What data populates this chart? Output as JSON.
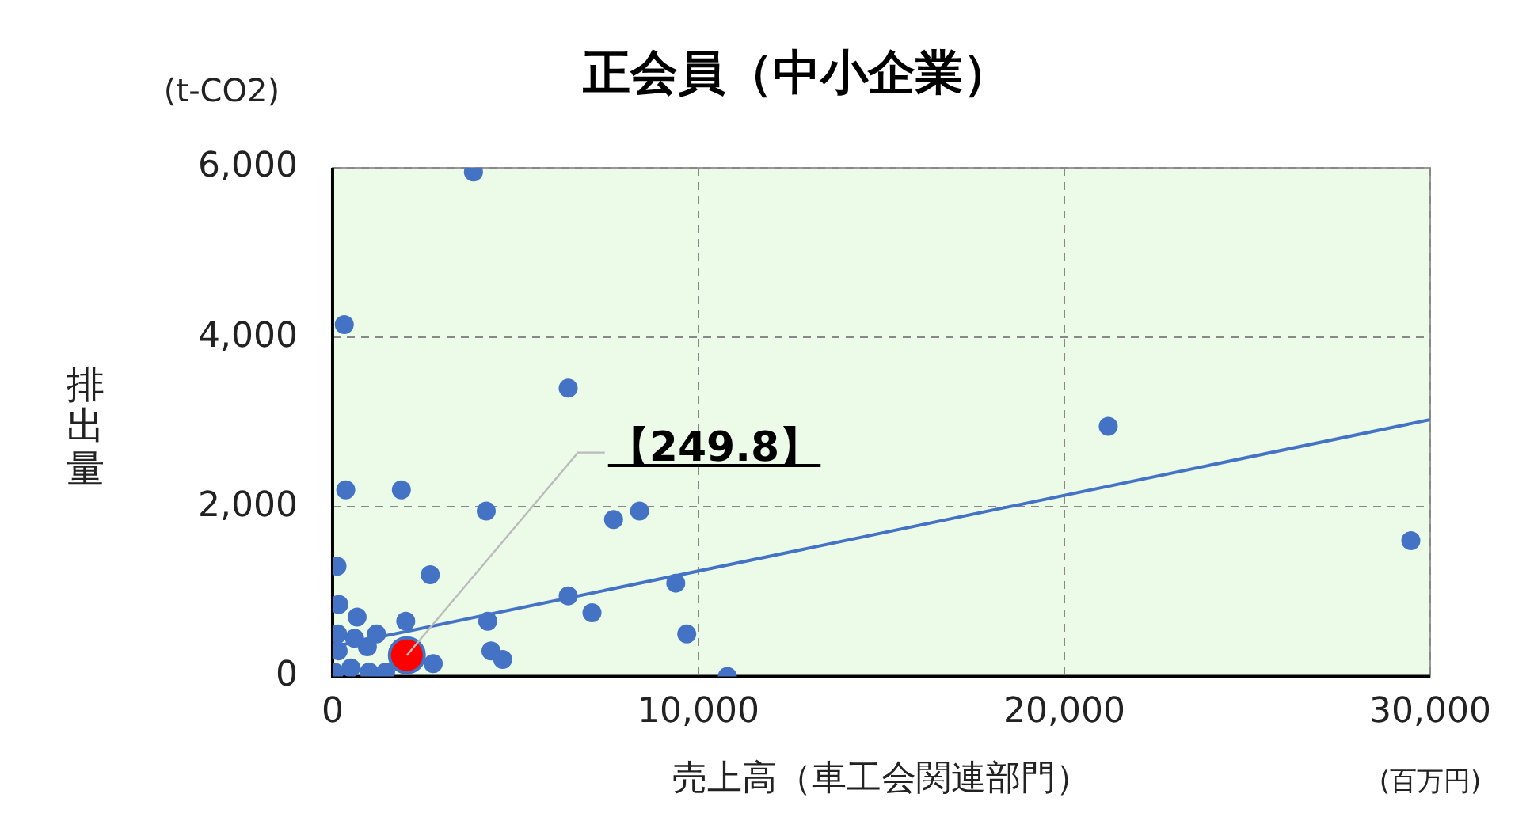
{
  "chart_data": {
    "type": "scatter",
    "title": "正会員（中小企業）",
    "xlabel": "売上高（車工会関連部門）",
    "ylabel": "排出量",
    "annotations": [
      "(t-CO2)",
      "(百万円)",
      {
        "text": "【249.8】",
        "x": 2030,
        "y": 249.8
      }
    ],
    "xlim": [
      0,
      30000
    ],
    "xticks": [
      0,
      {
        "value": 10000,
        "label": "10,000"
      },
      {
        "value": 20000,
        "label": "20,000"
      },
      {
        "value": 30000,
        "label": "30,000"
      }
    ],
    "ylim": [
      0,
      6000
    ],
    "yticks": [
      0,
      {
        "value": 2000,
        "label": "2,000"
      },
      {
        "value": 4000,
        "label": "4,000"
      },
      {
        "value": 6000,
        "label": "6,000"
      }
    ],
    "grid": true,
    "legend": false,
    "series": [
      {
        "type": "scatter",
        "marker": "circle",
        "color": "#4472c4",
        "x": [
          3850,
          320,
          6440,
          360,
          1880,
          4200,
          7680,
          8390,
          120,
          2670,
          6440,
          9380,
          170,
          670,
          4240,
          7090,
          2000,
          9680,
          4330,
          4650,
          10790,
          140,
          21200,
          29470,
          50,
          500,
          150,
          950,
          1000,
          1450,
          2750,
          600,
          1200
        ],
        "values": [
          5950,
          4150,
          3400,
          2200,
          2200,
          1950,
          1850,
          1950,
          1300,
          1200,
          950,
          1100,
          850,
          700,
          650,
          750,
          650,
          500,
          300,
          200,
          0,
          500,
          2950,
          1600,
          50,
          100,
          300,
          350,
          50,
          50,
          150,
          450,
          500
        ]
      },
      {
        "type": "scatter",
        "marker": "circle",
        "color": "#ff0000",
        "x": [
          2030
        ],
        "values": [
          249.8
        ]
      },
      {
        "type": "line",
        "marker": "none",
        "color": "#4472c4",
        "x": [
          0,
          30000
        ],
        "values": [
          350,
          3030
        ]
      }
    ]
  }
}
